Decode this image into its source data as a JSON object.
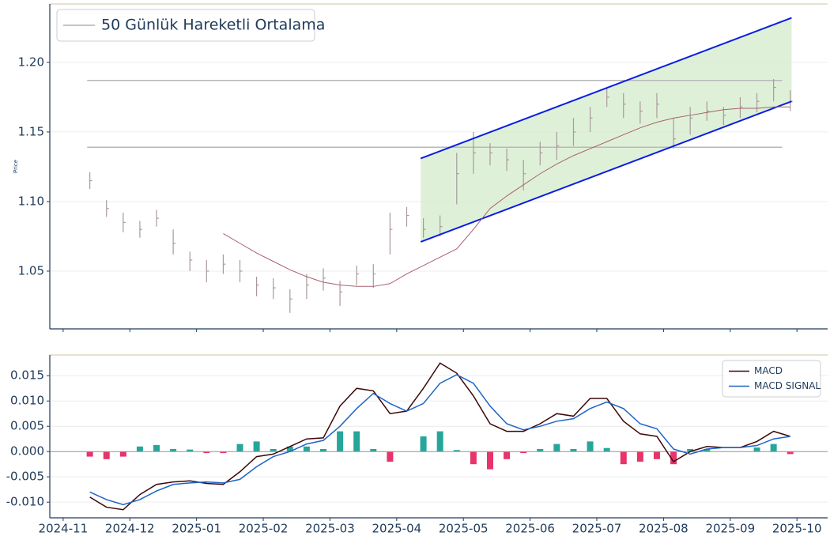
{
  "chart_data": [
    {
      "type": "ohlc",
      "ylabel": "Price",
      "xlim": [
        -0.2,
        11.46
      ],
      "ylim": [
        1.0085,
        1.242
      ],
      "yticks": [
        1.05,
        {
          "value": 1.1,
          "label": "1.10"
        },
        1.15,
        {
          "value": 1.2,
          "label": "1.20"
        }
      ],
      "x": [
        0.4,
        0.65,
        0.9,
        1.15,
        1.4,
        1.65,
        1.9,
        2.15,
        2.4,
        2.65,
        2.9,
        3.15,
        3.4,
        3.65,
        3.9,
        4.15,
        4.4,
        4.65,
        4.9,
        5.15,
        5.4,
        5.65,
        5.9,
        6.15,
        6.4,
        6.65,
        6.9,
        7.15,
        7.4,
        7.65,
        7.9,
        8.15,
        8.4,
        8.65,
        8.9,
        9.15,
        9.4,
        9.65,
        9.9,
        10.15,
        10.4,
        10.65,
        10.9
      ],
      "price": {
        "color": "#a89a9a",
        "high": [
          1.121,
          1.101,
          1.092,
          1.086,
          1.094,
          1.08,
          1.064,
          1.058,
          1.062,
          1.058,
          1.046,
          1.045,
          1.037,
          1.048,
          1.052,
          1.043,
          1.054,
          1.055,
          1.092,
          1.096,
          1.088,
          1.09,
          1.135,
          1.15,
          1.142,
          1.138,
          1.13,
          1.143,
          1.15,
          1.16,
          1.168,
          1.182,
          1.178,
          1.172,
          1.178,
          1.16,
          1.168,
          1.172,
          1.168,
          1.175,
          1.178,
          1.188,
          1.18
        ],
        "low": [
          1.109,
          1.089,
          1.078,
          1.074,
          1.082,
          1.062,
          1.05,
          1.042,
          1.048,
          1.042,
          1.032,
          1.03,
          1.02,
          1.03,
          1.036,
          1.025,
          1.04,
          1.038,
          1.062,
          1.082,
          1.074,
          1.075,
          1.098,
          1.12,
          1.126,
          1.122,
          1.108,
          1.126,
          1.13,
          1.14,
          1.15,
          1.168,
          1.16,
          1.156,
          1.16,
          1.138,
          1.148,
          1.158,
          1.155,
          1.16,
          1.164,
          1.172,
          1.165
        ],
        "close": [
          1.115,
          1.095,
          1.085,
          1.08,
          1.088,
          1.07,
          1.058,
          1.05,
          1.055,
          1.05,
          1.04,
          1.038,
          1.03,
          1.04,
          1.045,
          1.035,
          1.048,
          1.048,
          1.08,
          1.09,
          1.08,
          1.082,
          1.12,
          1.135,
          1.135,
          1.13,
          1.12,
          1.135,
          1.14,
          1.15,
          1.16,
          1.175,
          1.17,
          1.165,
          1.17,
          1.145,
          1.16,
          1.165,
          1.162,
          1.168,
          1.172,
          1.182,
          1.172
        ]
      },
      "series": [
        {
          "name": "50 Günlük Hareketli Ortalama",
          "color": "#a8606e",
          "values": [
            null,
            null,
            null,
            null,
            null,
            null,
            null,
            null,
            1.077,
            1.07,
            1.063,
            1.057,
            1.051,
            1.046,
            1.042,
            1.04,
            1.039,
            1.039,
            1.041,
            1.048,
            1.054,
            1.06,
            1.066,
            1.08,
            1.095,
            1.104,
            1.112,
            1.12,
            1.127,
            1.133,
            1.138,
            1.143,
            1.148,
            1.153,
            1.157,
            1.16,
            1.162,
            1.164,
            1.166,
            1.167,
            1.167,
            1.168,
            1.168
          ]
        }
      ],
      "levels": [
        1.187,
        1.139
      ],
      "level_span": [
        0.36,
        10.78
      ],
      "level_color": "#b8b8b8",
      "channel": {
        "x": [
          5.36,
          10.92
        ],
        "upper": [
          1.131,
          1.232
        ],
        "lower": [
          1.071,
          1.172
        ],
        "line_color": "#0a1ee0",
        "fill": "#d4ebcc"
      },
      "legend": "upper left"
    },
    {
      "type": "macd",
      "xlim": [
        -0.2,
        11.46
      ],
      "ylim": [
        -0.0131,
        0.0191
      ],
      "xticks": [
        {
          "value": 0,
          "label": "2024-11"
        },
        {
          "value": 1,
          "label": "2024-12"
        },
        {
          "value": 2,
          "label": "2025-01"
        },
        {
          "value": 3,
          "label": "2025-02"
        },
        {
          "value": 4,
          "label": "2025-03"
        },
        {
          "value": 5,
          "label": "2025-04"
        },
        {
          "value": 6,
          "label": "2025-05"
        },
        {
          "value": 7,
          "label": "2025-06"
        },
        {
          "value": 8,
          "label": "2025-07"
        },
        {
          "value": 9,
          "label": "2025-08"
        },
        {
          "value": 10,
          "label": "2025-09"
        },
        {
          "value": 11,
          "label": "2025-10"
        }
      ],
      "yticks": [
        {
          "value": -0.01,
          "label": "-0.010"
        },
        -0.005,
        {
          "value": 0,
          "label": "0.000"
        },
        {
          "value": 0.005,
          "label": "0.005"
        },
        {
          "value": 0.01,
          "label": "0.010"
        },
        0.015
      ],
      "x": [
        0.4,
        0.65,
        0.9,
        1.15,
        1.4,
        1.65,
        1.9,
        2.15,
        2.4,
        2.65,
        2.9,
        3.15,
        3.4,
        3.65,
        3.9,
        4.15,
        4.4,
        4.65,
        4.9,
        5.15,
        5.4,
        5.65,
        5.9,
        6.15,
        6.4,
        6.65,
        6.9,
        7.15,
        7.4,
        7.65,
        7.9,
        8.15,
        8.4,
        8.65,
        8.9,
        9.15,
        9.4,
        9.65,
        9.9,
        10.15,
        10.4,
        10.65,
        10.9
      ],
      "series": [
        {
          "name": "MACD",
          "color": "#3d0808",
          "values": [
            -0.009,
            -0.011,
            -0.0115,
            -0.0085,
            -0.0065,
            -0.006,
            -0.0058,
            -0.0063,
            -0.0065,
            -0.004,
            -0.001,
            -0.0005,
            0.001,
            0.0025,
            0.0027,
            0.009,
            0.0125,
            0.012,
            0.0075,
            0.008,
            0.0125,
            0.0175,
            0.0155,
            0.011,
            0.0055,
            0.004,
            0.004,
            0.0055,
            0.0075,
            0.007,
            0.0105,
            0.0105,
            0.006,
            0.0035,
            0.003,
            -0.002,
            0.0,
            0.001,
            0.0008,
            0.0008,
            0.002,
            0.004,
            0.003
          ]
        },
        {
          "name": "MACD SIGNAL",
          "color": "#1e64c8",
          "values": [
            -0.008,
            -0.0095,
            -0.0105,
            -0.0095,
            -0.0078,
            -0.0065,
            -0.0062,
            -0.006,
            -0.0062,
            -0.0055,
            -0.003,
            -0.001,
            0.0,
            0.0015,
            0.0022,
            0.005,
            0.0085,
            0.0115,
            0.0095,
            0.008,
            0.0095,
            0.0135,
            0.0152,
            0.0135,
            0.009,
            0.0055,
            0.0043,
            0.005,
            0.006,
            0.0065,
            0.0085,
            0.0098,
            0.0085,
            0.0055,
            0.0045,
            0.0005,
            -0.0005,
            0.0005,
            0.0008,
            0.0008,
            0.0012,
            0.0025,
            0.003
          ]
        }
      ],
      "histogram": {
        "up_color": "#26a69a",
        "down_color": "#e8336b",
        "values": [
          -0.001,
          -0.0015,
          -0.001,
          0.001,
          0.0013,
          0.0005,
          0.0004,
          -0.0003,
          -0.0003,
          0.0015,
          0.002,
          0.0005,
          0.001,
          0.001,
          0.0005,
          0.004,
          0.004,
          0.0005,
          -0.002,
          0.0,
          0.003,
          0.004,
          0.0003,
          -0.0025,
          -0.0035,
          -0.0015,
          -0.0003,
          0.0005,
          0.0015,
          0.0005,
          0.002,
          0.0007,
          -0.0025,
          -0.002,
          -0.0015,
          -0.0025,
          0.0005,
          0.0005,
          0.0,
          0.0,
          0.0008,
          0.0015,
          -0.0005
        ]
      },
      "legend": "upper right"
    }
  ]
}
